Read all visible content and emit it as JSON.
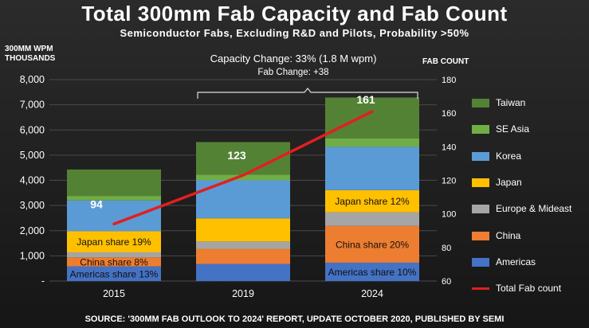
{
  "title": "Total 300mm Fab Capacity and Fab Count",
  "subtitle": "Semiconductor Fabs, Excluding R&D and Pilots, Probability >50%",
  "source": "SOURCE: '300MM FAB OUTLOOK TO 2024' REPORT, UPDATE OCTOBER 2020, PUBLISHED BY SEMI",
  "chart_data": {
    "type": "bar",
    "stacked": true,
    "categories": [
      "2015",
      "2019",
      "2024"
    ],
    "ylabel": "300MM WPM\nTHOUSANDS",
    "ylim": [
      0,
      8000
    ],
    "yticks": [
      "-",
      "1,000",
      "2,000",
      "3,000",
      "4,000",
      "5,000",
      "6,000",
      "7,000",
      "8,000"
    ],
    "y2label": "FAB COUNT",
    "y2lim": [
      60,
      180
    ],
    "y2ticks": [
      "60",
      "80",
      "100",
      "120",
      "140",
      "160",
      "180"
    ],
    "grid": true,
    "legend_position": "right",
    "series": [
      {
        "name": "Americas",
        "color": "#4472c4",
        "values": [
          580,
          680,
          730
        ]
      },
      {
        "name": "China",
        "color": "#ed7d31",
        "values": [
          360,
          600,
          1460
        ]
      },
      {
        "name": "Europe & Mideast",
        "color": "#a5a5a5",
        "values": [
          200,
          290,
          540
        ]
      },
      {
        "name": "Japan",
        "color": "#ffc000",
        "values": [
          840,
          920,
          880
        ]
      },
      {
        "name": "Korea",
        "color": "#5b9bd5",
        "values": [
          1220,
          1510,
          1720
        ]
      },
      {
        "name": "SE Asia",
        "color": "#70ad47",
        "values": [
          180,
          220,
          340
        ]
      },
      {
        "name": "Taiwan",
        "color": "#548235",
        "values": [
          1050,
          1300,
          1620
        ]
      }
    ],
    "line": {
      "name": "Total Fab count",
      "color": "#e02020",
      "values": [
        94,
        123,
        161
      ]
    },
    "bar_labels": [
      {
        "bar": 0,
        "series": "Americas",
        "text": "Americas share 13%"
      },
      {
        "bar": 0,
        "series": "China",
        "text": "China share 8%"
      },
      {
        "bar": 0,
        "series": "Japan",
        "text": "Japan share 19%"
      },
      {
        "bar": 1,
        "series": null,
        "text": ""
      },
      {
        "bar": 2,
        "series": "Americas",
        "text": "Americas share 10%"
      },
      {
        "bar": 2,
        "series": "China",
        "text": "China share 20%"
      },
      {
        "bar": 2,
        "series": "Japan",
        "text": "Japan share 12%"
      }
    ],
    "annotations": {
      "capacity_change": "Capacity Change: 33% (1.8 M wpm)",
      "fab_change": "Fab Change: +38"
    }
  },
  "legend_order": [
    "Taiwan",
    "SE Asia",
    "Korea",
    "Japan",
    "Europe & Mideast",
    "China",
    "Americas",
    "Total Fab count"
  ]
}
